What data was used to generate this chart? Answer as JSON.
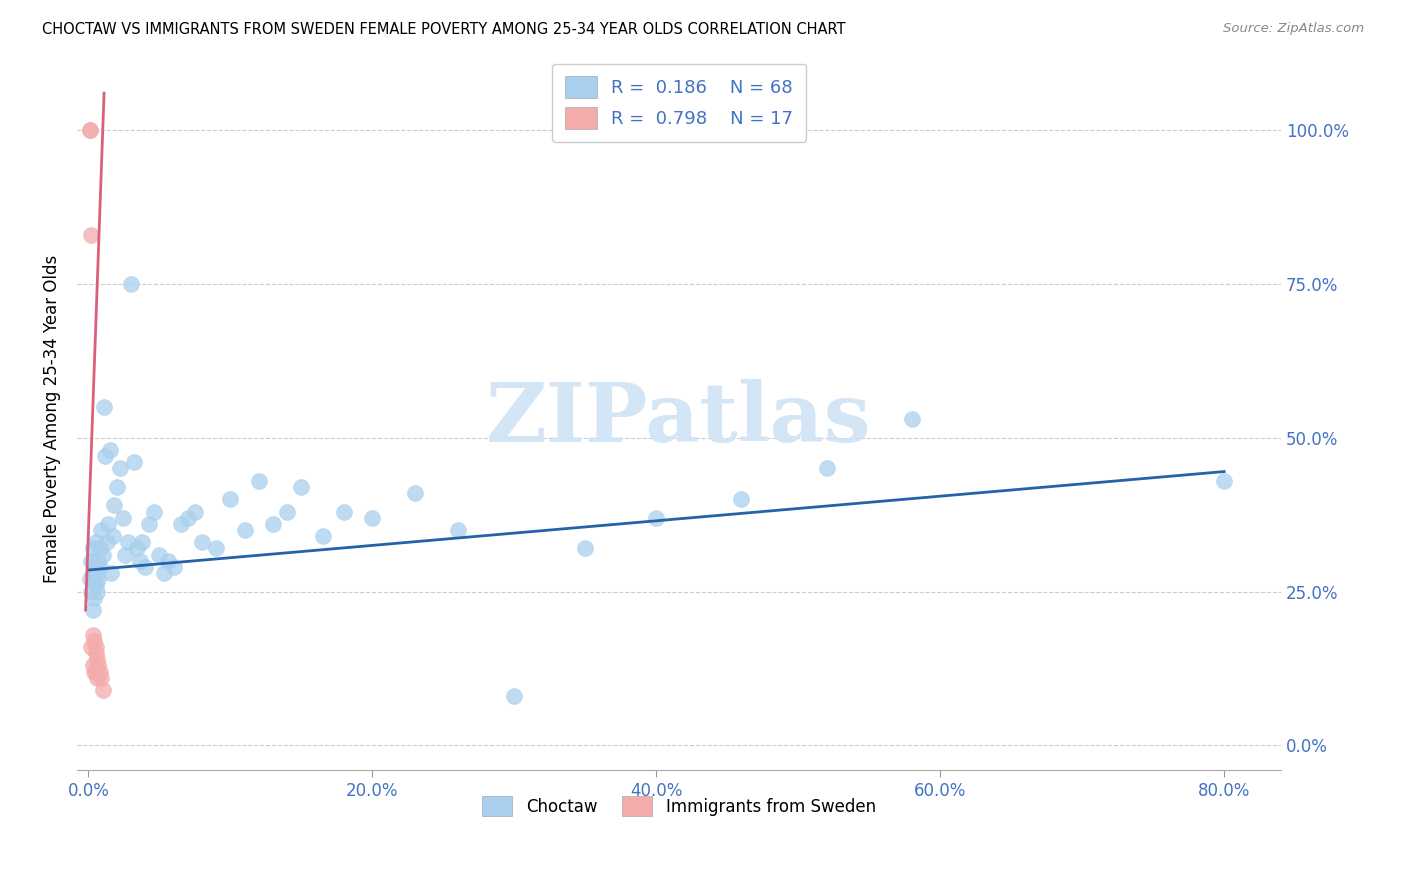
{
  "title": "CHOCTAW VS IMMIGRANTS FROM SWEDEN FEMALE POVERTY AMONG 25-34 YEAR OLDS CORRELATION CHART",
  "source": "Source: ZipAtlas.com",
  "ylabel": "Female Poverty Among 25-34 Year Olds",
  "xlim": [
    -0.008,
    0.84
  ],
  "ylim": [
    -0.04,
    1.1
  ],
  "x_tick_vals": [
    0.0,
    0.2,
    0.4,
    0.6,
    0.8
  ],
  "x_tick_labels": [
    "0.0%",
    "20.0%",
    "40.0%",
    "60.0%",
    "80.0%"
  ],
  "y_tick_vals": [
    0.0,
    0.25,
    0.5,
    0.75,
    1.0
  ],
  "y_tick_labels": [
    "0.0%",
    "25.0%",
    "50.0%",
    "75.0%",
    "100.0%"
  ],
  "choctaw_color": "#A8CFED",
  "sweden_color": "#F4ABAB",
  "trendline_choctaw_color": "#2563A8",
  "trendline_sweden_color": "#D9607A",
  "tick_label_color": "#4472C4",
  "legend_R_choctaw": "0.186",
  "legend_N_choctaw": "68",
  "legend_R_sweden": "0.798",
  "legend_N_sweden": "17",
  "legend_label_choctaw": "Choctaw",
  "legend_label_sweden": "Immigrants from Sweden",
  "choctaw_x": [
    0.001,
    0.002,
    0.002,
    0.003,
    0.003,
    0.003,
    0.004,
    0.004,
    0.004,
    0.005,
    0.005,
    0.005,
    0.006,
    0.006,
    0.007,
    0.007,
    0.008,
    0.008,
    0.009,
    0.01,
    0.011,
    0.012,
    0.013,
    0.014,
    0.015,
    0.016,
    0.017,
    0.018,
    0.02,
    0.022,
    0.024,
    0.026,
    0.028,
    0.03,
    0.032,
    0.034,
    0.036,
    0.038,
    0.04,
    0.043,
    0.046,
    0.05,
    0.053,
    0.056,
    0.06,
    0.065,
    0.07,
    0.075,
    0.08,
    0.09,
    0.1,
    0.11,
    0.12,
    0.13,
    0.14,
    0.15,
    0.165,
    0.18,
    0.2,
    0.23,
    0.26,
    0.3,
    0.35,
    0.4,
    0.46,
    0.52,
    0.58,
    0.8
  ],
  "choctaw_y": [
    0.27,
    0.3,
    0.25,
    0.28,
    0.32,
    0.22,
    0.27,
    0.3,
    0.24,
    0.29,
    0.26,
    0.33,
    0.28,
    0.25,
    0.3,
    0.27,
    0.32,
    0.29,
    0.35,
    0.31,
    0.55,
    0.47,
    0.33,
    0.36,
    0.48,
    0.28,
    0.34,
    0.39,
    0.42,
    0.45,
    0.37,
    0.31,
    0.33,
    0.75,
    0.46,
    0.32,
    0.3,
    0.33,
    0.29,
    0.36,
    0.38,
    0.31,
    0.28,
    0.3,
    0.29,
    0.36,
    0.37,
    0.38,
    0.33,
    0.32,
    0.4,
    0.35,
    0.43,
    0.36,
    0.38,
    0.42,
    0.34,
    0.38,
    0.37,
    0.41,
    0.35,
    0.08,
    0.32,
    0.37,
    0.4,
    0.45,
    0.53,
    0.43
  ],
  "sweden_x": [
    0.001,
    0.001,
    0.002,
    0.002,
    0.003,
    0.003,
    0.004,
    0.004,
    0.005,
    0.005,
    0.005,
    0.006,
    0.006,
    0.007,
    0.008,
    0.009,
    0.01
  ],
  "sweden_y": [
    1.0,
    1.0,
    0.83,
    0.16,
    0.18,
    0.13,
    0.17,
    0.12,
    0.16,
    0.12,
    0.15,
    0.14,
    0.11,
    0.13,
    0.12,
    0.11,
    0.09
  ],
  "choctaw_trendline_x": [
    0.0,
    0.8
  ],
  "choctaw_trendline_y": [
    0.285,
    0.445
  ],
  "sweden_trendline_x": [
    -0.002,
    0.011
  ],
  "sweden_trendline_y": [
    0.22,
    1.06
  ],
  "watermark_text": "ZIPatlas",
  "watermark_color": "#D0E4F5",
  "background_color": "#FFFFFF",
  "grid_color": "#CCCCCC",
  "legend_text_color": "#4472C4"
}
